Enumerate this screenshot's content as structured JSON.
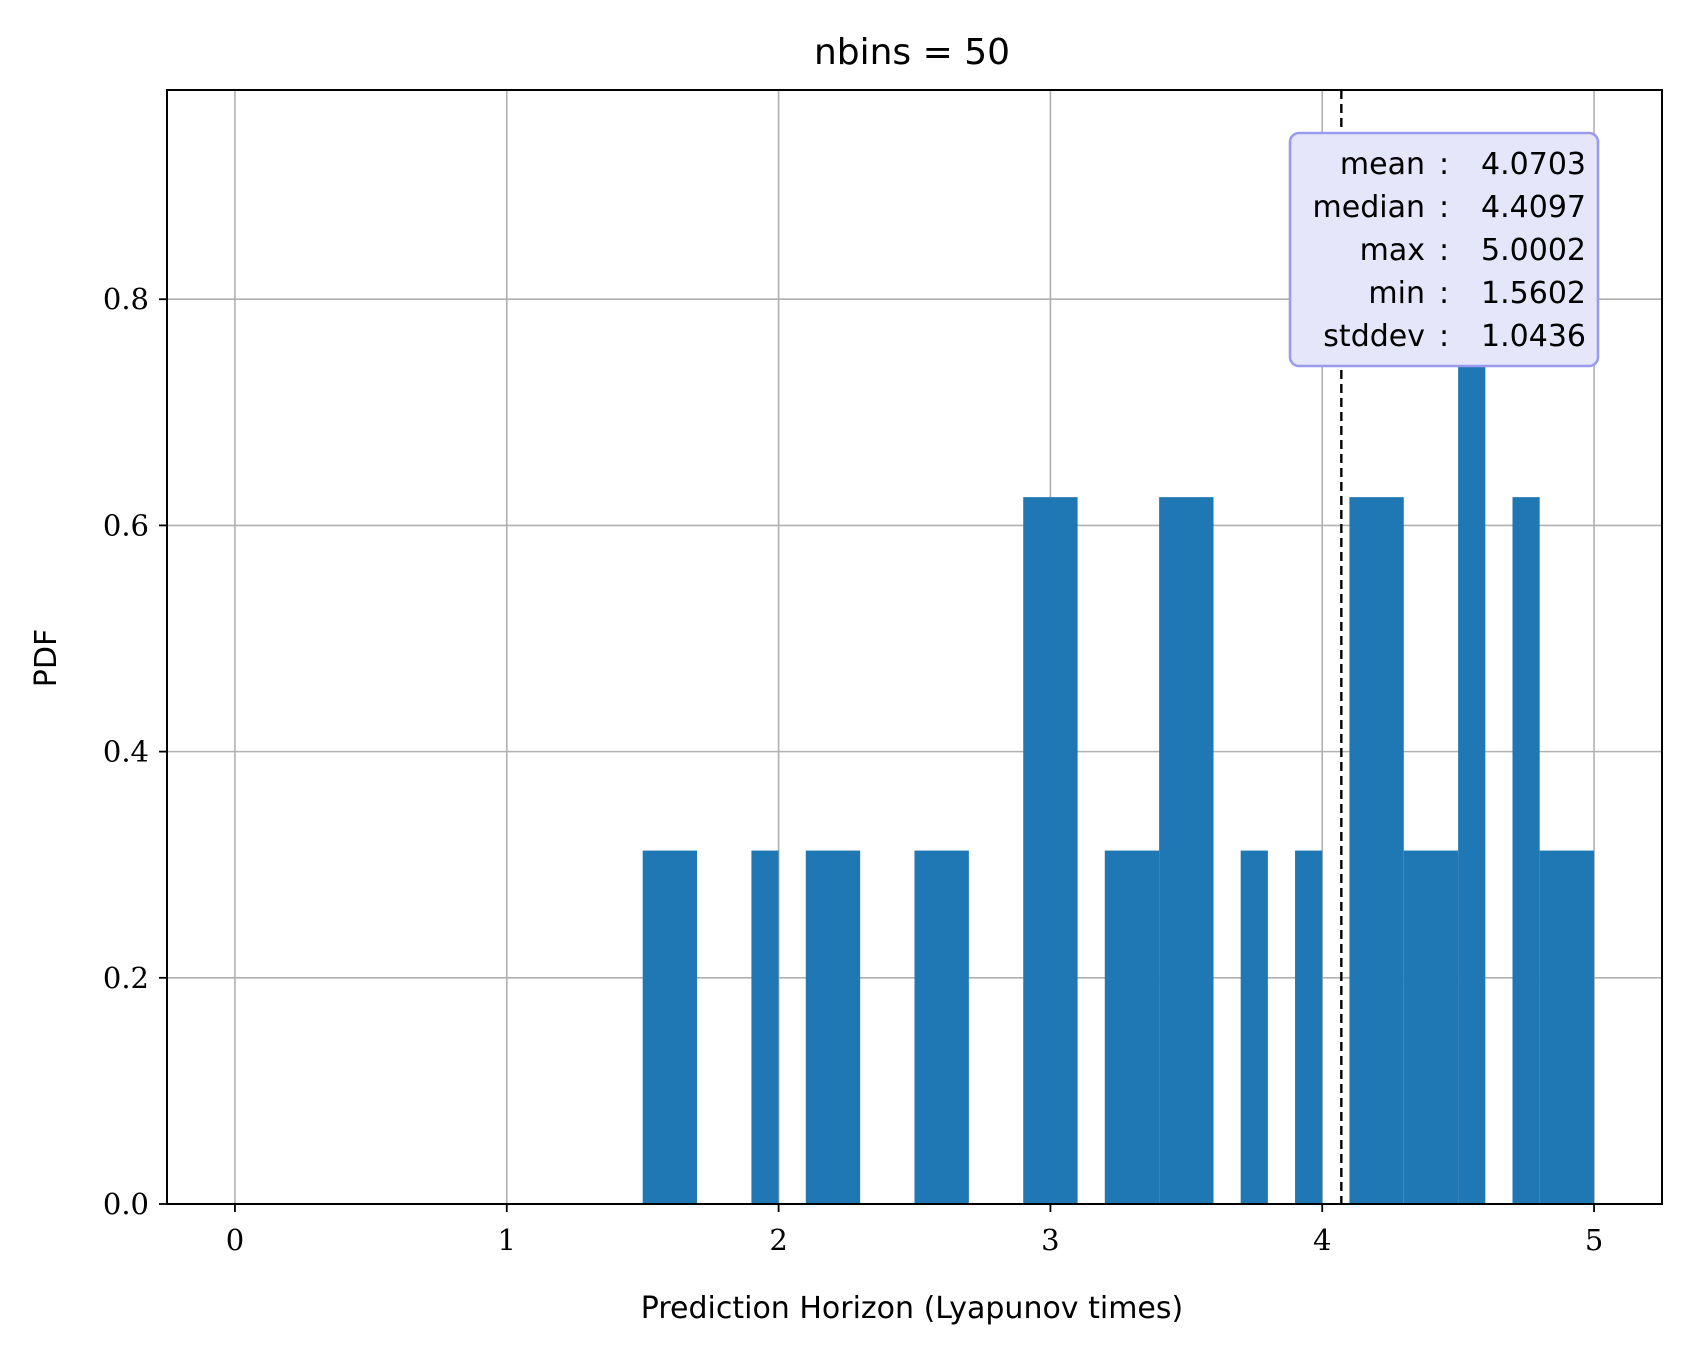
{
  "chart_data": {
    "type": "bar",
    "title": "nbins = 50",
    "xlabel": "Prediction Horizon (Lyapunov times)",
    "ylabel": "PDF",
    "xlim": [
      -0.25,
      5.25
    ],
    "ylim": [
      0,
      0.985
    ],
    "grid": true,
    "xticks": [
      0,
      1,
      2,
      3,
      4,
      5
    ],
    "xtick_labels": [
      "0",
      "1",
      "2",
      "3",
      "4",
      "5"
    ],
    "yticks": [
      0.0,
      0.2,
      0.4,
      0.6,
      0.8
    ],
    "ytick_labels": [
      "0.0",
      "0.2",
      "0.4",
      "0.6",
      "0.8"
    ],
    "bar_color": "#1f77b4",
    "bins": [
      {
        "x0": 1.5,
        "x1": 1.7,
        "value": 0.3125
      },
      {
        "x0": 1.9,
        "x1": 2.0,
        "value": 0.3125
      },
      {
        "x0": 2.1,
        "x1": 2.3,
        "value": 0.3125
      },
      {
        "x0": 2.5,
        "x1": 2.7,
        "value": 0.3125
      },
      {
        "x0": 2.9,
        "x1": 3.1,
        "value": 0.625
      },
      {
        "x0": 3.2,
        "x1": 3.4,
        "value": 0.3125
      },
      {
        "x0": 3.4,
        "x1": 3.6,
        "value": 0.625
      },
      {
        "x0": 3.7,
        "x1": 3.8,
        "value": 0.3125
      },
      {
        "x0": 3.9,
        "x1": 4.0,
        "value": 0.3125
      },
      {
        "x0": 4.1,
        "x1": 4.3,
        "value": 0.625
      },
      {
        "x0": 4.3,
        "x1": 4.5,
        "value": 0.3125
      },
      {
        "x0": 4.5,
        "x1": 4.6,
        "value": 0.9375
      },
      {
        "x0": 4.7,
        "x1": 4.8,
        "value": 0.625
      },
      {
        "x0": 4.8,
        "x1": 5.0,
        "value": 0.3125
      }
    ],
    "mean_line": {
      "x": 4.0703,
      "style": "dashed",
      "color": "#000000"
    },
    "stats_box": {
      "placement": "top-right",
      "facecolor": "#e6e6fa",
      "edgecolor": "#9a9aee",
      "rows": [
        {
          "key": "mean",
          "sep": ":",
          "value": "4.0703"
        },
        {
          "key": "median",
          "sep": ":",
          "value": "4.4097"
        },
        {
          "key": "max",
          "sep": ":",
          "value": "5.0002"
        },
        {
          "key": "min",
          "sep": ":",
          "value": "1.5602"
        },
        {
          "key": "stddev",
          "sep": ":",
          "value": "1.0436"
        }
      ]
    }
  }
}
